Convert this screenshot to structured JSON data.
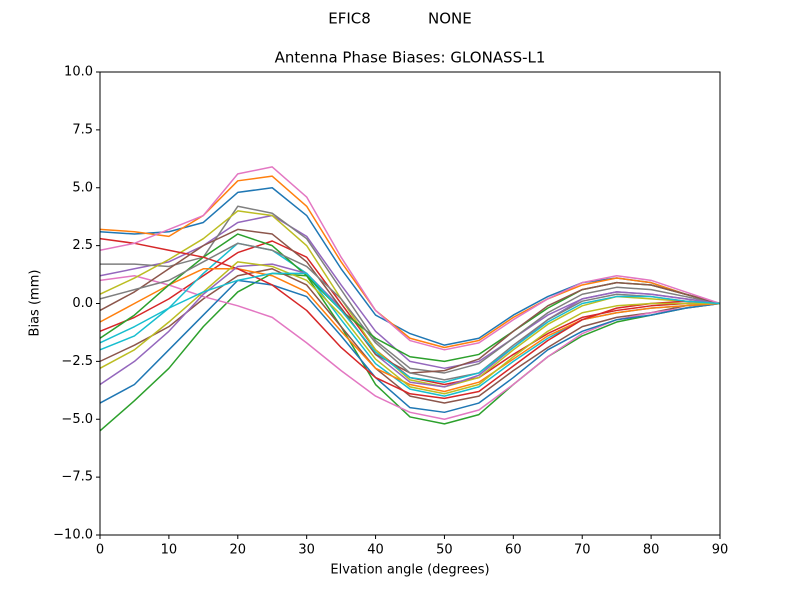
{
  "chart_data": {
    "type": "line",
    "suptitle": "EFIC8            NONE",
    "title": "Antenna Phase Biases: GLONASS-L1",
    "xlabel": "Elvation angle (degrees)",
    "ylabel": "Bias (mm)",
    "x": [
      0,
      5,
      10,
      15,
      20,
      25,
      30,
      35,
      40,
      45,
      50,
      55,
      60,
      65,
      70,
      75,
      80,
      85,
      90
    ],
    "xlim": [
      0,
      90
    ],
    "xticks": [
      0,
      10,
      20,
      30,
      40,
      50,
      60,
      70,
      80,
      90
    ],
    "ylim": [
      -10,
      10
    ],
    "yticks": [
      {
        "value": -10,
        "label": "−10.0"
      },
      {
        "value": -7.5,
        "label": "−7.5"
      },
      {
        "value": -5,
        "label": "−5.0"
      },
      {
        "value": -2.5,
        "label": "−2.5"
      },
      {
        "value": 0,
        "label": "0.0"
      },
      {
        "value": 2.5,
        "label": "2.5"
      },
      {
        "value": 5,
        "label": "5.0"
      },
      {
        "value": 7.5,
        "label": "7.5"
      },
      {
        "value": 10,
        "label": "10.0"
      }
    ],
    "grid": false,
    "series": [
      {
        "color": "#1f77b4",
        "values": [
          3.1,
          3.0,
          3.1,
          3.5,
          4.8,
          5.0,
          3.8,
          1.5,
          -0.5,
          -1.3,
          -1.8,
          -1.5,
          -0.5,
          0.3,
          0.9,
          1.1,
          0.9,
          0.4,
          0
        ]
      },
      {
        "color": "#ff7f0e",
        "values": [
          3.2,
          3.1,
          2.9,
          3.8,
          5.3,
          5.5,
          4.2,
          1.8,
          -0.3,
          -1.5,
          -1.9,
          -1.6,
          -0.6,
          0.2,
          0.8,
          1.1,
          0.9,
          0.4,
          0
        ]
      },
      {
        "color": "#2ca02c",
        "values": [
          -5.5,
          -4.2,
          -2.8,
          -1.0,
          0.5,
          1.3,
          1.2,
          -1.0,
          -3.5,
          -4.9,
          -5.2,
          -4.8,
          -3.5,
          -2.3,
          -1.4,
          -0.8,
          -0.5,
          -0.2,
          0
        ]
      },
      {
        "color": "#d62728",
        "values": [
          -1.2,
          -0.6,
          0.2,
          1.2,
          2.2,
          2.7,
          2.0,
          0.0,
          -2.0,
          -3.2,
          -3.5,
          -3.2,
          -2.2,
          -1.3,
          -0.6,
          -0.3,
          -0.1,
          0,
          0
        ]
      },
      {
        "color": "#9467bd",
        "values": [
          1.2,
          1.5,
          1.8,
          2.5,
          3.5,
          3.8,
          2.9,
          0.8,
          -1.2,
          -2.5,
          -2.8,
          -2.5,
          -1.5,
          -0.5,
          0.2,
          0.5,
          0.4,
          0.2,
          0
        ]
      },
      {
        "color": "#8c564b",
        "values": [
          -2.5,
          -1.8,
          -1.0,
          0.2,
          1.2,
          1.5,
          0.8,
          -1.0,
          -2.8,
          -4.0,
          -4.3,
          -4.0,
          -2.9,
          -1.9,
          -1.0,
          -0.6,
          -0.4,
          -0.1,
          0
        ]
      },
      {
        "color": "#e377c2",
        "values": [
          1.0,
          1.2,
          0.8,
          0.3,
          -0.1,
          -0.6,
          -1.7,
          -2.9,
          -4.0,
          -4.7,
          -5.0,
          -4.6,
          -3.5,
          -2.3,
          -1.3,
          -0.7,
          -0.4,
          -0.2,
          0
        ]
      },
      {
        "color": "#7f7f7f",
        "values": [
          1.7,
          1.7,
          1.6,
          2.0,
          4.2,
          3.9,
          2.8,
          0.6,
          -1.6,
          -2.8,
          -3.0,
          -2.6,
          -1.5,
          -0.4,
          0.4,
          0.7,
          0.6,
          0.3,
          0
        ]
      },
      {
        "color": "#bcbd22",
        "values": [
          0.4,
          1.1,
          1.9,
          2.8,
          4.0,
          3.8,
          2.5,
          0.2,
          -2.0,
          -3.3,
          -3.6,
          -3.2,
          -2.0,
          -0.9,
          -0.1,
          0.3,
          0.2,
          0.1,
          0
        ]
      },
      {
        "color": "#17becf",
        "values": [
          -2.0,
          -1.4,
          -0.2,
          1.3,
          2.6,
          2.3,
          1.3,
          -0.7,
          -2.6,
          -3.7,
          -4.0,
          -3.6,
          -2.5,
          -1.5,
          -0.7,
          -0.4,
          -0.2,
          -0.1,
          0
        ]
      },
      {
        "color": "#1f77b4",
        "values": [
          -4.3,
          -3.5,
          -2.0,
          -0.5,
          1.0,
          0.8,
          0.3,
          -1.4,
          -3.2,
          -4.5,
          -4.7,
          -4.3,
          -3.2,
          -2.0,
          -1.2,
          -0.7,
          -0.5,
          -0.2,
          0
        ]
      },
      {
        "color": "#ff7f0e",
        "values": [
          -0.8,
          0.0,
          0.8,
          1.5,
          1.5,
          1.2,
          0.5,
          -1.2,
          -2.8,
          -3.5,
          -3.8,
          -3.4,
          -2.4,
          -1.4,
          -0.7,
          -0.4,
          -0.2,
          -0.1,
          0
        ]
      },
      {
        "color": "#2ca02c",
        "values": [
          -1.5,
          -0.5,
          0.8,
          2.0,
          3.0,
          2.5,
          1.2,
          -0.3,
          -1.5,
          -2.3,
          -2.5,
          -2.2,
          -1.2,
          -0.2,
          0.6,
          0.9,
          0.8,
          0.4,
          0
        ]
      },
      {
        "color": "#d62728",
        "values": [
          2.8,
          2.6,
          2.3,
          2.0,
          1.5,
          0.8,
          -0.3,
          -1.9,
          -3.2,
          -3.9,
          -4.1,
          -3.8,
          -2.7,
          -1.6,
          -0.7,
          -0.2,
          0,
          0.1,
          0
        ]
      },
      {
        "color": "#9467bd",
        "values": [
          -3.5,
          -2.5,
          -1.2,
          0.4,
          1.6,
          1.7,
          1.3,
          -0.2,
          -2.2,
          -3.4,
          -3.6,
          -3.1,
          -1.9,
          -0.7,
          0.2,
          0.5,
          0.4,
          0.2,
          0
        ]
      },
      {
        "color": "#8c564b",
        "values": [
          -0.3,
          0.5,
          1.5,
          2.5,
          3.2,
          3.0,
          1.8,
          -0.2,
          -2.2,
          -3.0,
          -2.9,
          -2.4,
          -1.2,
          -0.1,
          0.6,
          0.9,
          0.8,
          0.4,
          0
        ]
      },
      {
        "color": "#e377c2",
        "values": [
          2.3,
          2.6,
          3.2,
          3.8,
          5.6,
          5.9,
          4.6,
          2.0,
          -0.3,
          -1.6,
          -2.0,
          -1.7,
          -0.7,
          0.2,
          0.9,
          1.2,
          1.0,
          0.5,
          0
        ]
      },
      {
        "color": "#7f7f7f",
        "values": [
          0.2,
          0.6,
          1.0,
          1.8,
          2.6,
          2.3,
          1.6,
          0.2,
          -1.7,
          -3.0,
          -3.3,
          -3.0,
          -1.8,
          -0.7,
          0.1,
          0.4,
          0.3,
          0.1,
          0
        ]
      },
      {
        "color": "#bcbd22",
        "values": [
          -2.8,
          -2.0,
          -0.8,
          0.5,
          1.8,
          1.6,
          1.0,
          -0.5,
          -2.4,
          -3.6,
          -3.9,
          -3.5,
          -2.3,
          -1.2,
          -0.4,
          -0.1,
          0,
          0,
          0
        ]
      },
      {
        "color": "#17becf",
        "values": [
          -1.7,
          -1.0,
          -0.2,
          0.5,
          1.0,
          1.3,
          1.3,
          -0.3,
          -2.1,
          -3.2,
          -3.4,
          -3.0,
          -1.9,
          -0.8,
          0.0,
          0.3,
          0.3,
          0.1,
          0
        ]
      }
    ]
  }
}
